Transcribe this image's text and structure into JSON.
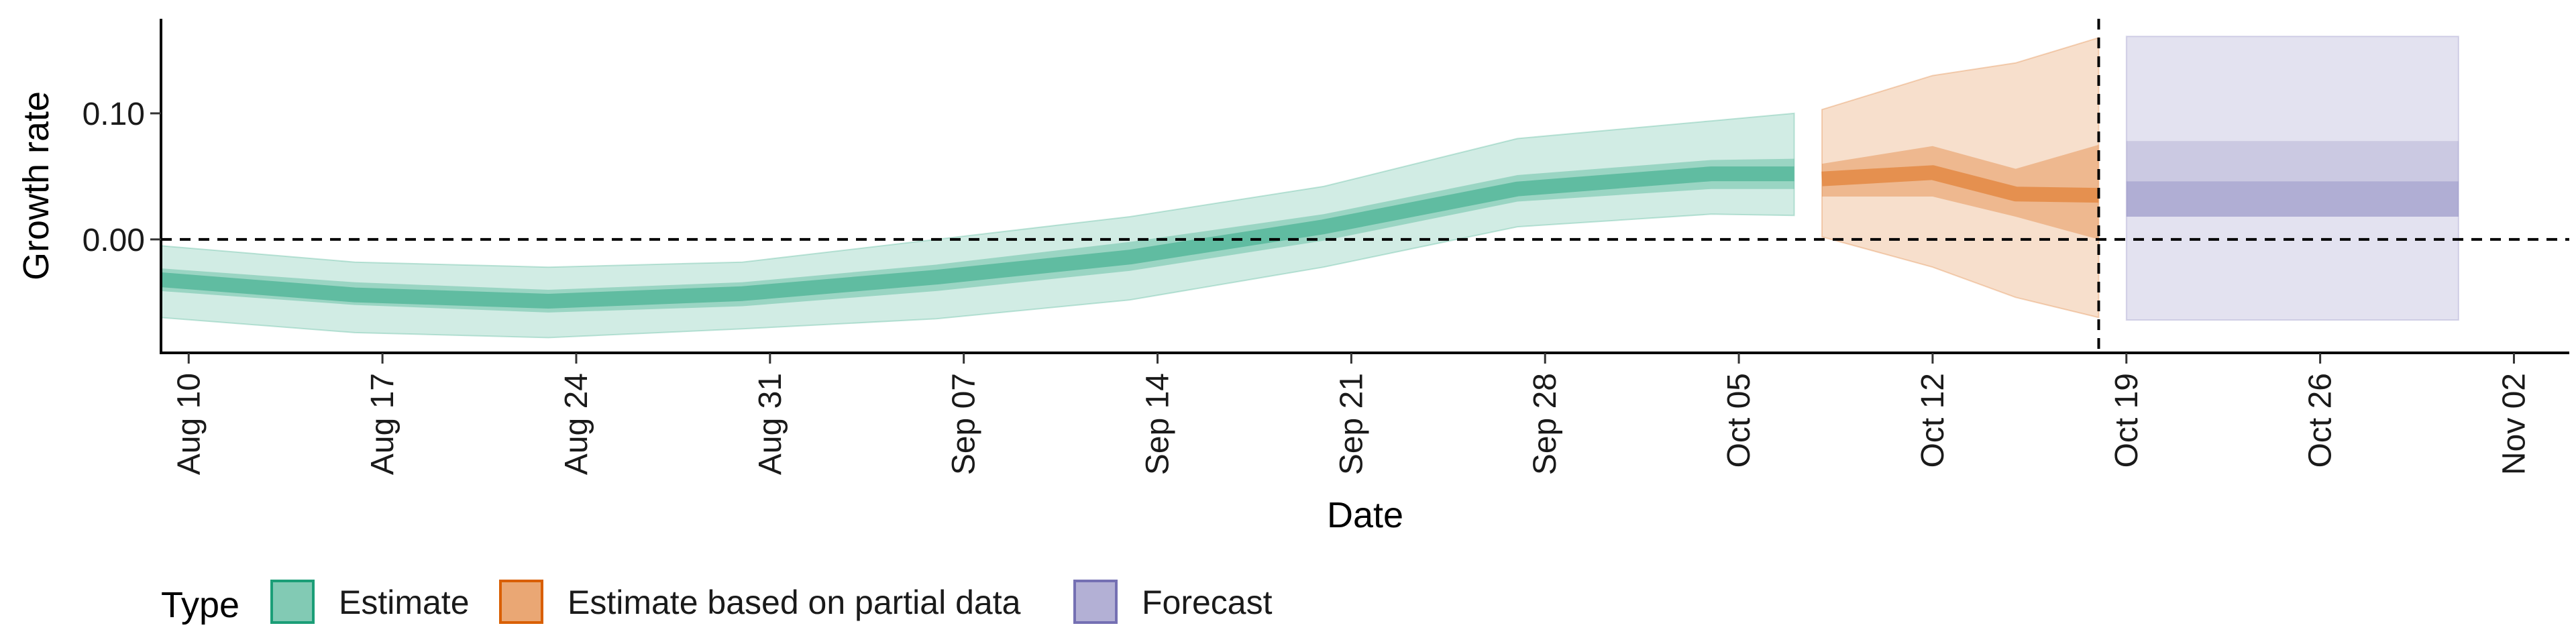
{
  "chart_data": {
    "type": "area",
    "xlabel": "Date",
    "ylabel": "Growth rate",
    "x_ticks": [
      "Aug 10",
      "Aug 17",
      "Aug 24",
      "Aug 31",
      "Sep 07",
      "Sep 14",
      "Sep 21",
      "Sep 28",
      "Oct 05",
      "Oct 12",
      "Oct 19",
      "Oct 26",
      "Nov 02"
    ],
    "y_ticks": [
      "0.00",
      "0.10"
    ],
    "xlim": [
      "2020-08-09",
      "2020-11-04"
    ],
    "ylim": [
      -0.09,
      0.175
    ],
    "reference_lines": {
      "horizontal_y": 0.0,
      "vertical_x": "2020-10-18"
    },
    "legend": {
      "title": "Type",
      "position": "bottom-left",
      "entries": [
        "Estimate",
        "Estimate based on partial data",
        "Forecast"
      ]
    },
    "colors": {
      "Estimate": "#1b9e77",
      "Estimate based on partial data": "#d95f02",
      "Forecast": "#7570b3"
    },
    "series": [
      {
        "name": "Estimate",
        "points": [
          {
            "x": "2020-08-09",
            "median": -0.032,
            "inner": [
              -0.041,
              -0.023
            ],
            "outer": [
              -0.062,
              -0.005
            ]
          },
          {
            "x": "2020-08-16",
            "median": -0.044,
            "inner": [
              -0.052,
              -0.034
            ],
            "outer": [
              -0.074,
              -0.018
            ]
          },
          {
            "x": "2020-08-23",
            "median": -0.049,
            "inner": [
              -0.058,
              -0.04
            ],
            "outer": [
              -0.078,
              -0.022
            ]
          },
          {
            "x": "2020-08-30",
            "median": -0.043,
            "inner": [
              -0.053,
              -0.034
            ],
            "outer": [
              -0.071,
              -0.018
            ]
          },
          {
            "x": "2020-09-06",
            "median": -0.03,
            "inner": [
              -0.041,
              -0.02
            ],
            "outer": [
              -0.063,
              0.0
            ]
          },
          {
            "x": "2020-09-13",
            "median": -0.014,
            "inner": [
              -0.025,
              -0.002
            ],
            "outer": [
              -0.048,
              0.018
            ]
          },
          {
            "x": "2020-09-20",
            "median": 0.01,
            "inner": [
              -0.001,
              0.02
            ],
            "outer": [
              -0.022,
              0.042
            ]
          },
          {
            "x": "2020-09-27",
            "median": 0.04,
            "inner": [
              0.03,
              0.051
            ],
            "outer": [
              0.01,
              0.08
            ]
          },
          {
            "x": "2020-10-04",
            "median": 0.052,
            "inner": [
              0.04,
              0.063
            ],
            "outer": [
              0.02,
              0.094
            ]
          },
          {
            "x": "2020-10-07",
            "median": 0.052,
            "inner": [
              0.04,
              0.064
            ],
            "outer": [
              0.019,
              0.1
            ]
          }
        ]
      },
      {
        "name": "Estimate based on partial data",
        "points": [
          {
            "x": "2020-10-08",
            "median": 0.048,
            "inner": [
              0.034,
              0.06
            ],
            "outer": [
              0.002,
              0.103
            ]
          },
          {
            "x": "2020-10-12",
            "median": 0.053,
            "inner": [
              0.034,
              0.074
            ],
            "outer": [
              -0.022,
              0.13
            ]
          },
          {
            "x": "2020-10-15",
            "median": 0.036,
            "inner": [
              0.018,
              0.056
            ],
            "outer": [
              -0.046,
              0.14
            ]
          },
          {
            "x": "2020-10-18",
            "median": 0.035,
            "inner": [
              0.0,
              0.075
            ],
            "outer": [
              -0.062,
              0.16
            ]
          }
        ]
      },
      {
        "name": "Forecast",
        "points": [
          {
            "x": "2020-10-19",
            "median": 0.031,
            "inner": [
              0.018,
              0.046
            ],
            "outer": [
              -0.064,
              0.161
            ],
            "middle": [
              0.018,
              0.078
            ]
          },
          {
            "x": "2020-10-31",
            "median": 0.031,
            "inner": [
              0.018,
              0.046
            ],
            "outer": [
              -0.064,
              0.161
            ],
            "middle": [
              0.018,
              0.078
            ]
          }
        ]
      }
    ]
  }
}
